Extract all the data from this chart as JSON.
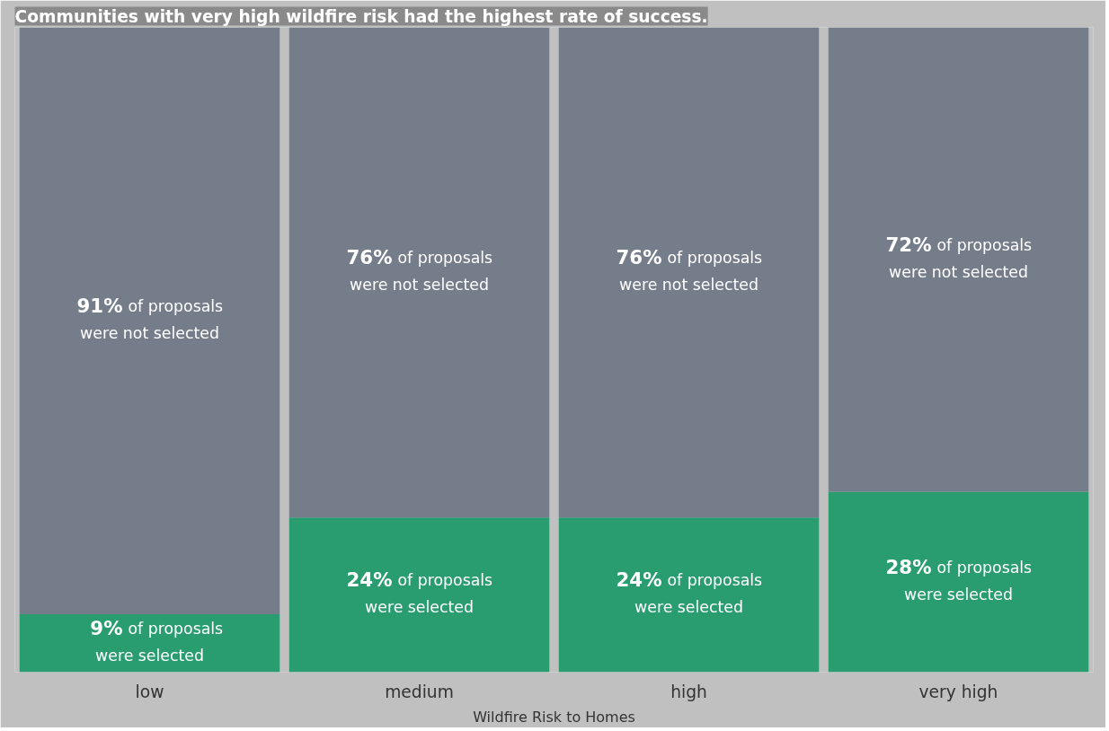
{
  "chart_data": {
    "type": "bar",
    "title": "Communities with very high wildfire risk had the highest rate of success.",
    "xlabel": "Wildfire Risk to Homes",
    "categories": [
      "low",
      "medium",
      "high",
      "very high"
    ],
    "stacked": true,
    "ylim": [
      0,
      100
    ],
    "tick_labels": "x",
    "grid": false,
    "series": [
      {
        "color": "#2a9d70",
        "values": [
          9,
          24,
          24,
          28
        ],
        "value_labels": [
          "9% of proposals were selected",
          "24% of proposals were selected",
          "24% of proposals were selected",
          "28% of proposals were selected"
        ]
      },
      {
        "color": "#767d8a",
        "values": [
          91,
          76,
          76,
          72
        ],
        "value_labels": [
          "91% of proposals were not selected",
          "76% of proposals were not selected",
          "76% of proposals were not selected",
          "72% of proposals were not selected"
        ]
      }
    ]
  }
}
